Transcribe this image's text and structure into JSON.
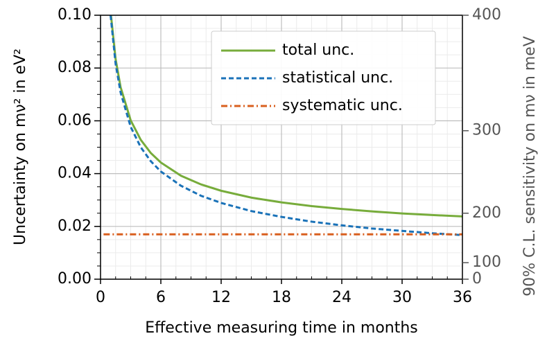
{
  "chart_data": {
    "type": "line",
    "x_label": "Effective measuring time in months",
    "y_label": "Uncertainty on mν² in eV²",
    "y2_label": "90% C.L. sensitivity on mν in meV",
    "xlim": [
      0,
      36
    ],
    "xticks": [
      0,
      6,
      12,
      18,
      24,
      30,
      36
    ],
    "ylim": [
      0,
      0.1
    ],
    "yticks": [
      {
        "value": 0,
        "label": "0.00"
      },
      {
        "value": 0.02,
        "label": "0.02"
      },
      {
        "value": 0.04,
        "label": "0.04"
      },
      {
        "value": 0.06,
        "label": "0.06"
      },
      {
        "value": 0.08,
        "label": "0.08"
      },
      {
        "value": 0.1,
        "label": "0.10"
      }
    ],
    "y2lim": [
      0,
      400
    ],
    "y2ticks": [
      0,
      100,
      200,
      300,
      400
    ],
    "y2scale": "quadratic",
    "grid": true,
    "minor_grid": true,
    "legend": "upper right",
    "series": [
      {
        "name": "total unc.",
        "color": "#77ac3b",
        "style": "solid",
        "x": [
          1,
          1.5,
          2,
          3,
          4,
          5,
          6,
          8,
          10,
          12,
          15,
          18,
          21,
          24,
          27,
          30,
          33,
          36
        ],
        "values": [
          0.1014,
          0.0834,
          0.0727,
          0.0602,
          0.0528,
          0.0478,
          0.0442,
          0.0392,
          0.0359,
          0.0335,
          0.0309,
          0.0291,
          0.0277,
          0.0266,
          0.0257,
          0.0249,
          0.0243,
          0.0238
        ]
      },
      {
        "name": "statistical unc.",
        "color": "#1a72b8",
        "style": "dashed",
        "x": [
          1,
          1.5,
          2,
          3,
          4,
          5,
          6,
          8,
          10,
          12,
          15,
          18,
          21,
          24,
          27,
          30,
          33,
          36
        ],
        "values": [
          0.1,
          0.0816,
          0.0707,
          0.0577,
          0.05,
          0.0447,
          0.0408,
          0.0354,
          0.0316,
          0.0289,
          0.0258,
          0.0236,
          0.0218,
          0.0204,
          0.0192,
          0.0183,
          0.0174,
          0.0167
        ]
      },
      {
        "name": "systematic unc.",
        "color": "#d95f1e",
        "style": "dashdot",
        "x": [
          0.3,
          36
        ],
        "values": [
          0.017,
          0.017
        ]
      }
    ]
  }
}
